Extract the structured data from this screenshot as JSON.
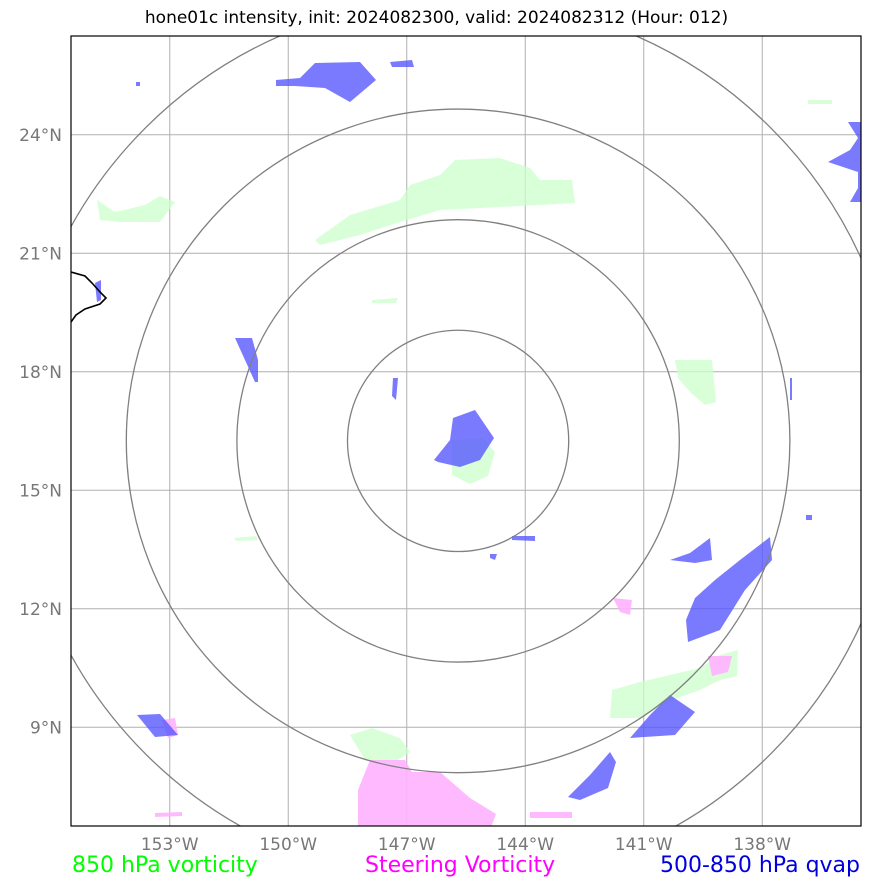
{
  "title": "hone01c intensity, init: 2024082300, valid: 2024082312 (Hour: 012)",
  "map": {
    "lon_range": [
      -155.5,
      -135.5
    ],
    "lat_range": [
      6.5,
      26.5
    ],
    "lon_ticks": [
      {
        "value": -153,
        "label": "153°W"
      },
      {
        "value": -150,
        "label": "150°W"
      },
      {
        "value": -147,
        "label": "147°W"
      },
      {
        "value": -144,
        "label": "144°W"
      },
      {
        "value": -141,
        "label": "141°W"
      },
      {
        "value": -138,
        "label": "138°W"
      }
    ],
    "lat_ticks": [
      {
        "value": 24,
        "label": "24°N"
      },
      {
        "value": 21,
        "label": "21°N"
      },
      {
        "value": 18,
        "label": "18°N"
      },
      {
        "value": 15,
        "label": "15°N"
      },
      {
        "value": 12,
        "label": "12°N"
      },
      {
        "value": 9,
        "label": "9°N"
      }
    ],
    "storm_center": {
      "lon": -145.7,
      "lat": 16.25
    },
    "range_rings_deg": [
      2.8,
      5.6,
      8.4,
      11.2
    ],
    "colors": {
      "vorticity_850": "#ccffcc",
      "steering_vorticity": "#ffb3ff",
      "qvap": "#5555ff",
      "grid": "#b0b0b0",
      "rings": "#808080",
      "coast": "#000000"
    }
  },
  "legend": {
    "left": {
      "label": "850 hPa vorticity",
      "color": "#00ff00"
    },
    "middle": {
      "label": "Steering Vorticity",
      "color": "#ff00ff"
    },
    "right": {
      "label": "500-850 hPa qvap",
      "color": "#0000dd"
    }
  }
}
